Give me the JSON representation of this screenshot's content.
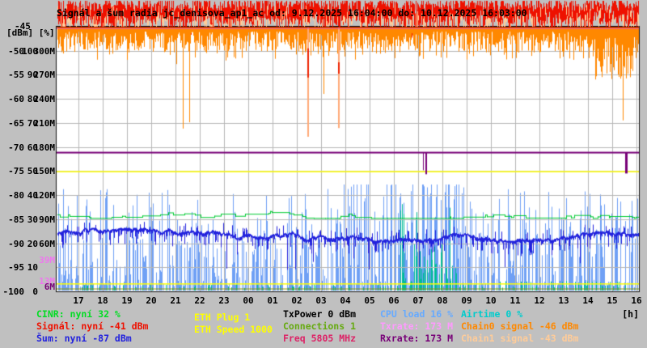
{
  "title": "Signál a šum radia jc_denisova_ap1_ac od: 9.12.2025 16:04:00 do: 10.12.2025 16:03:00",
  "axes": {
    "unit_header": "[dBm] [%]",
    "top_dbm_label": "-45",
    "hours_unit": "[h]",
    "rows": [
      {
        "dbm": "-50",
        "pct": "100",
        "rate": "300M"
      },
      {
        "dbm": "-55",
        "pct": "90",
        "rate": "270M"
      },
      {
        "dbm": "-60",
        "pct": "80",
        "rate": "240M"
      },
      {
        "dbm": "-65",
        "pct": "70",
        "rate": "210M"
      },
      {
        "dbm": "-70",
        "pct": "60",
        "rate": "180M"
      },
      {
        "dbm": "-75",
        "pct": "50",
        "rate": "150M"
      },
      {
        "dbm": "-80",
        "pct": "40",
        "rate": "120M"
      },
      {
        "dbm": "-85",
        "pct": "30",
        "rate": "90M"
      },
      {
        "dbm": "-90",
        "pct": "20",
        "rate": "60M"
      },
      {
        "dbm": "-95",
        "pct": "10",
        "rate": ""
      },
      {
        "dbm": "-100",
        "pct": "0",
        "rate": ""
      }
    ],
    "extra_rate_labels": [
      {
        "text": "39M",
        "color": "#ee77ee",
        "v_mbps": 39
      },
      {
        "text": "13M",
        "color": "#ee77ee",
        "v_mbps": 13
      },
      {
        "text": "6M",
        "color": "#770077",
        "v_mbps": 6
      }
    ],
    "hours": [
      "17",
      "18",
      "19",
      "20",
      "21",
      "22",
      "23",
      "00",
      "01",
      "02",
      "03",
      "04",
      "05",
      "06",
      "07",
      "08",
      "09",
      "10",
      "11",
      "12",
      "13",
      "14",
      "15",
      "16"
    ]
  },
  "legend": {
    "columns": [
      [
        {
          "text": "CINR: nyní 32 %",
          "color": "#00dd22"
        },
        {
          "text": "Signál: nyní -41 dBm",
          "color": "#ee1100"
        },
        {
          "text": "Šum: nyní -87 dBm",
          "color": "#2222dd"
        }
      ],
      [
        {
          "text": "ETH Plug 1",
          "color": "#ffff00"
        },
        {
          "text": "ETH Speed 1000",
          "color": "#ffff00"
        }
      ],
      [
        {
          "text": "TxPower 0 dBm",
          "color": "#000000"
        },
        {
          "text": "Connections 1",
          "color": "#66aa11"
        },
        {
          "text": "Freq 5805 MHz",
          "color": "#dd2266"
        }
      ],
      [
        {
          "text": "CPU load 16 %",
          "color": "#66aaff"
        },
        {
          "text": "Txrate: 173 M",
          "color": "#ff99ff"
        },
        {
          "text": "Rxrate: 173 M",
          "color": "#770077"
        }
      ],
      [
        {
          "text": "Airtime 0 %",
          "color": "#00cccc"
        },
        {
          "text": "Chain0 signal -46 dBm",
          "color": "#ff8800"
        },
        {
          "text": "Chain1 signal -43 dBm",
          "color": "#ffcc99"
        }
      ]
    ]
  },
  "chart_data": {
    "type": "line",
    "title": "Signál a šum radia jc_denisova_ap1_ac od: 9.12.2025 16:04:00 do: 10.12.2025 16:03:00",
    "x_axis": {
      "unit": "[h]",
      "start": "9.12.2025 16:04:00",
      "end": "10.12.2025 16:03:00",
      "hour_labels": [
        "17",
        "18",
        "19",
        "20",
        "21",
        "22",
        "23",
        "00",
        "01",
        "02",
        "03",
        "04",
        "05",
        "06",
        "07",
        "08",
        "09",
        "10",
        "11",
        "12",
        "13",
        "14",
        "15",
        "16"
      ]
    },
    "y_axis_dbm": {
      "min": -100,
      "max": -45,
      "step": 5
    },
    "y_axis_pct": {
      "min": 0,
      "max": 100,
      "step": 10
    },
    "y_axis_rate_mbps": {
      "min": 0,
      "max": 300,
      "step": 30,
      "extra_ticks": [
        39,
        13,
        6
      ]
    },
    "grid": true,
    "series": [
      {
        "name": "Signál",
        "color": "#ee1100",
        "current": "-41 dBm",
        "current_dbm": -41,
        "band_dbm": [
          -45.8,
          -38.6
        ],
        "zone": "top-band"
      },
      {
        "name": "Chain1 signal",
        "color": "#ffcc99",
        "current": "-43 dBm",
        "current_dbm": -43,
        "band_dbm": [
          -47.5,
          -41
        ]
      },
      {
        "name": "Chain0 signal",
        "color": "#ff8800",
        "current": "-46 dBm",
        "current_dbm": -46,
        "band_dbm": [
          -50.5,
          -45.2
        ],
        "spikes": [
          {
            "t": 0.06,
            "v": -48.4
          },
          {
            "t": 0.09,
            "v": -50.6
          },
          {
            "t": 0.121,
            "v": -51.7
          },
          {
            "t": 0.16,
            "v": -49.5
          },
          {
            "t": 0.206,
            "v": -52.6
          },
          {
            "t": 0.217,
            "v": -66.0
          },
          {
            "t": 0.228,
            "v": -64.7
          },
          {
            "t": 0.459,
            "v": -58.8
          },
          {
            "t": 0.972,
            "v": -64.3
          }
        ],
        "salmon_spikes": [
          {
            "t": 0.431,
            "v": -67.7,
            "red": [
              -49.5,
              -55.4
            ]
          },
          {
            "t": 0.483,
            "v": -65.9,
            "red": [
              -52.4,
              -54.6
            ]
          }
        ]
      },
      {
        "name": "Šum",
        "color": "#2222dd",
        "current": "-87 dBm",
        "current_dbm": -87,
        "band_dbm": [
          -89.5,
          -86.8
        ],
        "deep_spike_dbm": -95.5
      },
      {
        "name": "CINR",
        "color": "#00cc33",
        "current": "32 %",
        "current_pct": 32,
        "range_pct": [
          30.5,
          34.2
        ]
      },
      {
        "name": "CPU load",
        "color": "#6fa0f5",
        "current": "16 %",
        "current_pct": 16,
        "range_pct": [
          0,
          44
        ],
        "busy_t": [
          0.493,
          0.7
        ]
      },
      {
        "name": "Airtime",
        "color": "#00bb99",
        "current": "0 %",
        "current_pct": 0,
        "burst_pct": 38,
        "burst_t": [
          0.59,
          0.688
        ],
        "trickle_t": [
          0.73,
          0.97
        ]
      },
      {
        "name": "Txrate",
        "color": "#ff99ff",
        "current": "173 M",
        "current_mbps": 173
      },
      {
        "name": "Rxrate",
        "color": "#770077",
        "current": "173 M",
        "current_mbps": 173,
        "dips": [
          {
            "t": 0.629,
            "v": 152,
            "w": 1
          },
          {
            "t": 0.633,
            "v": 147,
            "w": 2
          },
          {
            "t": 0.976,
            "v": 148,
            "w": 3
          }
        ]
      },
      {
        "name": "TxPower",
        "color": "#000000",
        "current": "0 dBm",
        "clipped_at_top": true
      },
      {
        "name": "Freq",
        "color": "#dd2266",
        "current": "5805 MHz",
        "clipped_at_top": true
      },
      {
        "name": "ETH Plug",
        "color": "#ffff00",
        "current": "1",
        "line_mbps": 10
      },
      {
        "name": "ETH Speed",
        "color": "#ffff00",
        "current": "1000",
        "line_mbps": 150
      },
      {
        "name": "Connections",
        "color": "#8a9a00",
        "current": "1",
        "line_mbps": 3.5
      }
    ]
  }
}
